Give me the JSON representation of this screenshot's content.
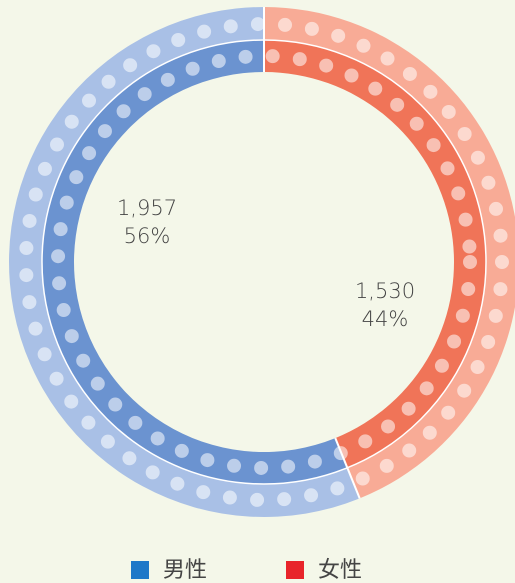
{
  "chart_data": {
    "type": "donut",
    "categories": [
      "男性",
      "女性"
    ],
    "values": [
      1957,
      1530
    ],
    "value_labels": [
      "1,957",
      "1,530"
    ],
    "percent_labels": [
      "56%",
      "44%"
    ],
    "colors": [
      "#1f78c8",
      "#e8242a"
    ],
    "ring_colors": [
      [
        "#6b93d0",
        "#a9c0e6"
      ],
      [
        "#f07458",
        "#f8ab96"
      ]
    ],
    "start": "top",
    "direction": "clockwise",
    "first": 1
  }
}
